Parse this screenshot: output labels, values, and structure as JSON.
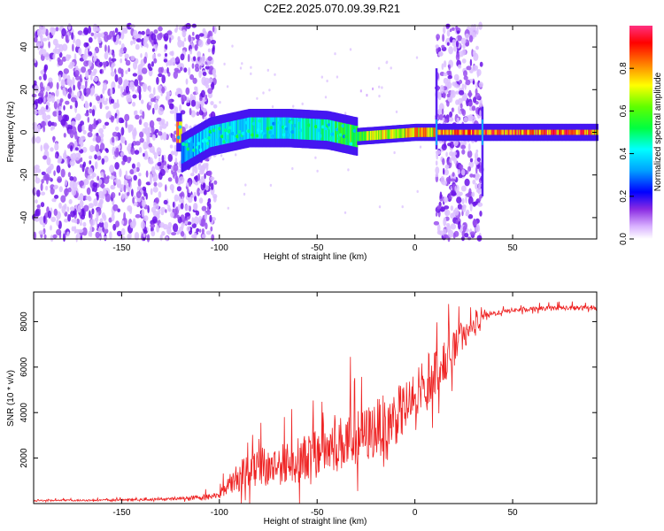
{
  "title": "C2E2.2025.070.09.39.R21",
  "colors": {
    "line": "#ee2222",
    "colormap": [
      "#ffffff",
      "#d8b0ff",
      "#8a2be2",
      "#4400ff",
      "#0000ff",
      "#00a0ff",
      "#00ffff",
      "#00ff60",
      "#60ff00",
      "#ffff00",
      "#ff8000",
      "#ff0000",
      "#ff3080"
    ]
  },
  "chart_data": [
    {
      "type": "heatmap",
      "title": "C2E2.2025.070.09.39.R21",
      "xlabel": "Height of straight line (km)",
      "ylabel": "Frequency (Hz)",
      "xlim": [
        -195,
        93
      ],
      "ylim": [
        -50,
        50
      ],
      "xticks": [
        -150,
        -100,
        -50,
        0,
        50
      ],
      "yticks": [
        -40,
        -20,
        0,
        20,
        40
      ],
      "colorbar": {
        "label": "Normalized spectral amplitude",
        "range": [
          0,
          1
        ],
        "ticks": [
          0.0,
          0.2,
          0.4,
          0.6,
          0.8
        ]
      },
      "features": {
        "noise_band_low": [
          -195,
          -102
        ],
        "noise_band_mid": [
          11,
          34
        ],
        "signal_track": [
          {
            "x": -120,
            "y": -10,
            "amp": 0.35
          },
          {
            "x": -105,
            "y": -2,
            "amp": 0.4
          },
          {
            "x": -85,
            "y": 2,
            "amp": 0.45
          },
          {
            "x": -65,
            "y": 2,
            "amp": 0.45
          },
          {
            "x": -45,
            "y": 1,
            "amp": 0.5
          },
          {
            "x": -30,
            "y": -2,
            "amp": 0.65
          },
          {
            "x": -15,
            "y": -1,
            "amp": 0.75
          },
          {
            "x": 0,
            "y": 0,
            "amp": 0.8
          },
          {
            "x": 10,
            "y": 0,
            "amp": 0.85
          },
          {
            "x": 40,
            "y": 0,
            "amp": 0.9
          },
          {
            "x": 93,
            "y": 0,
            "amp": 0.9
          }
        ]
      }
    },
    {
      "type": "line",
      "xlabel": "Height of straight line (km)",
      "ylabel": "SNR (10 * v/v)",
      "xlim": [
        -195,
        93
      ],
      "ylim": [
        0,
        9300
      ],
      "xticks": [
        -150,
        -100,
        -50,
        0,
        50
      ],
      "yticks": [
        2000,
        4000,
        6000,
        8000
      ],
      "series": [
        {
          "x": [
            -195,
            -180,
            -160,
            -140,
            -120,
            -105,
            -100,
            -95,
            -90,
            -85,
            -80,
            -75,
            -70,
            -65,
            -60,
            -55,
            -50,
            -45,
            -40,
            -35,
            -30,
            -25,
            -20,
            -15,
            -10,
            -5,
            0,
            5,
            10,
            15,
            20,
            25,
            30,
            35,
            40,
            50,
            60,
            70,
            80,
            93
          ],
          "mean": [
            130,
            140,
            150,
            170,
            220,
            300,
            400,
            800,
            1200,
            1500,
            1800,
            1600,
            1700,
            1800,
            1900,
            2100,
            2300,
            2400,
            2600,
            2700,
            2900,
            3000,
            3300,
            3500,
            3800,
            4200,
            4600,
            5200,
            5800,
            6200,
            6800,
            7300,
            7800,
            8200,
            8350,
            8500,
            8550,
            8600,
            8600,
            8600
          ],
          "spread": [
            80,
            80,
            90,
            100,
            150,
            300,
            400,
            900,
            1500,
            1900,
            2300,
            2000,
            2000,
            2000,
            2200,
            2300,
            2600,
            2700,
            2700,
            2800,
            2800,
            2800,
            2900,
            2900,
            2800,
            2700,
            2600,
            2600,
            2400,
            2000,
            1700,
            1300,
            800,
            400,
            250,
            220,
            220,
            220,
            220,
            220
          ]
        }
      ]
    }
  ]
}
